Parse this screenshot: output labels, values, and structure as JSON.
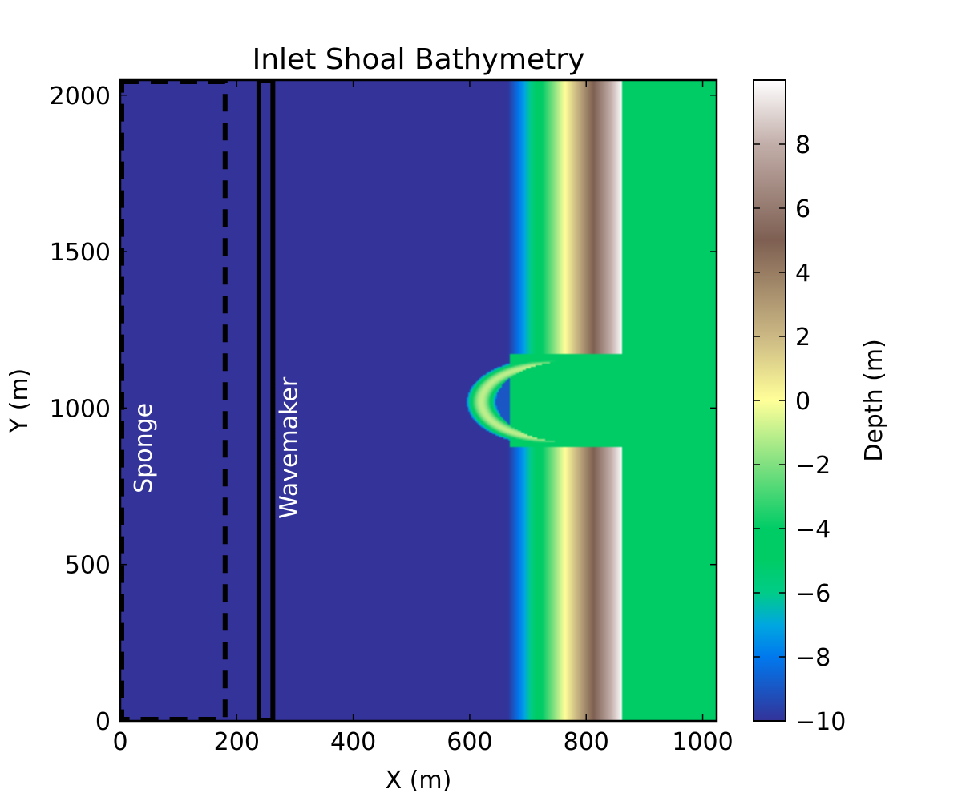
{
  "chart_data": {
    "type": "heatmap",
    "title": "Inlet Shoal Bathymetry",
    "xlabel": "X (m)",
    "ylabel": "Y (m)",
    "xlim": [
      0,
      1024
    ],
    "ylim": [
      0,
      2048
    ],
    "xticks": [
      0,
      200,
      400,
      600,
      800,
      1000
    ],
    "yticks": [
      0,
      500,
      1000,
      1500,
      2000
    ],
    "colorbar": {
      "label": "Depth (m)",
      "range": [
        -10,
        10
      ],
      "ticks": [
        -10,
        -8,
        -6,
        -4,
        -2,
        0,
        2,
        4,
        6,
        8
      ],
      "tick_labels": [
        "−10",
        "−8",
        "−6",
        "−4",
        "−2",
        "0",
        "2",
        "4",
        "6",
        "8"
      ],
      "colormap": "terrain",
      "stops": [
        {
          "value": -10,
          "color": "#333399"
        },
        {
          "value": -8,
          "color": "#0079ee"
        },
        {
          "value": -7,
          "color": "#00a7e0"
        },
        {
          "value": -6,
          "color": "#00cc88"
        },
        {
          "value": -5,
          "color": "#00cc66"
        },
        {
          "value": -4,
          "color": "#00cc66"
        },
        {
          "value": -2,
          "color": "#80e080"
        },
        {
          "value": 0,
          "color": "#ffff99"
        },
        {
          "value": 2,
          "color": "#cbb884"
        },
        {
          "value": 5,
          "color": "#7e5f52"
        },
        {
          "value": 8,
          "color": "#c2aea9"
        },
        {
          "value": 10,
          "color": "#ffffff"
        }
      ]
    },
    "bathymetry": {
      "offshore_depth": -10,
      "slope_start_x": 665,
      "slope_end_x": 862,
      "slope_depth_range": [
        -10,
        10
      ],
      "bay_depth": -5,
      "inlet": {
        "x_range": [
          670,
          862
        ],
        "y_range": [
          875,
          1175
        ],
        "depth": -5
      },
      "ebb_shoal": {
        "center_x": 735,
        "center_y": 1020,
        "outer_radius": 140,
        "inner_center_x": 775,
        "inner_radius": 130,
        "crest_depth": -1
      }
    },
    "annotations": [
      {
        "text": "Sponge",
        "x": 40,
        "y": 1000,
        "rotation": -90,
        "color": "#ffffff"
      },
      {
        "text": "Wavemaker",
        "x": 290,
        "y": 1000,
        "rotation": -90,
        "color": "#ffffff"
      }
    ],
    "sponge_region": {
      "x": [
        0,
        180
      ],
      "y": [
        0,
        2048
      ],
      "style": "dashed"
    },
    "wavemaker_region": {
      "x": [
        238,
        262
      ],
      "y": [
        0,
        2048
      ],
      "style": "solid"
    },
    "grid": false,
    "legend": "none"
  }
}
